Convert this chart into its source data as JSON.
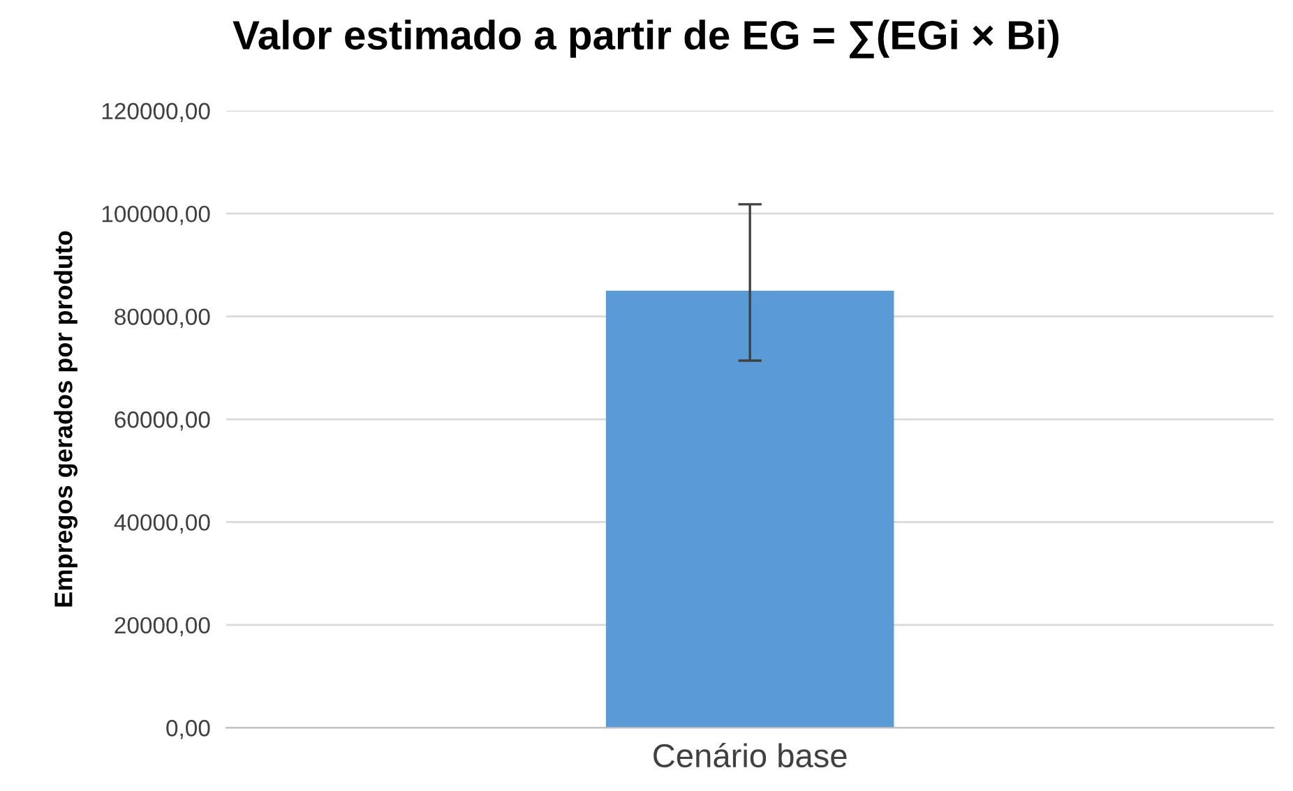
{
  "chart_data": {
    "type": "bar",
    "title": "Valor estimado a partir de EG = ∑(EGi × Bi)",
    "ylabel": "Empregos gerados por produto",
    "categories": [
      "Cenário base"
    ],
    "values": [
      85000
    ],
    "color": "#5b9bd5",
    "errors": [
      [
        71400,
        101800
      ]
    ],
    "ylim": [
      0,
      120000
    ],
    "yticks": [
      {
        "value": 0,
        "label": "0,00"
      },
      {
        "value": 20000,
        "label": "20000,00"
      },
      {
        "value": 40000,
        "label": "40000,00"
      },
      {
        "value": 60000,
        "label": "60000,00"
      },
      {
        "value": 80000,
        "label": "80000,00"
      },
      {
        "value": 100000,
        "label": "100000,00"
      },
      {
        "value": 120000,
        "label": "120000,00"
      }
    ],
    "grid": "y"
  }
}
